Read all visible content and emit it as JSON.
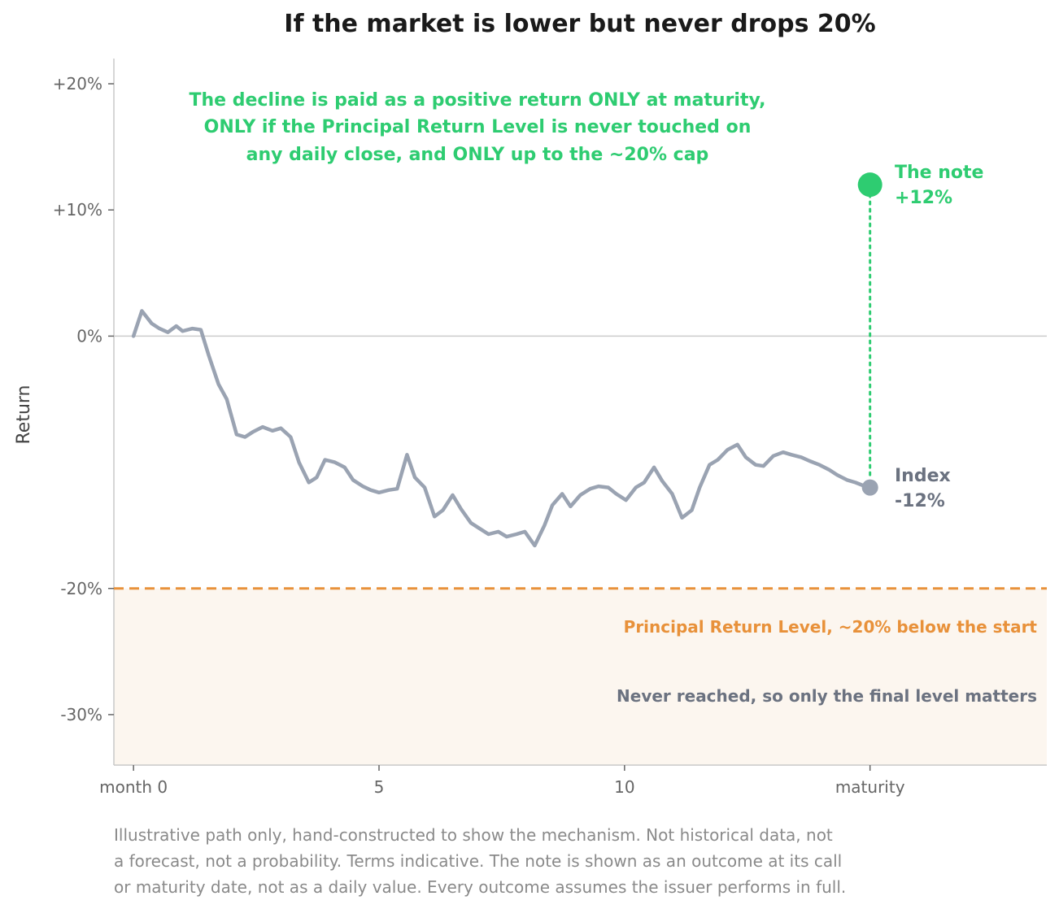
{
  "chart_data": {
    "type": "line",
    "title": "If the market is lower but never drops 20%",
    "ylabel": "Return",
    "xlabel": "",
    "xlim": [
      -0.4,
      18.6
    ],
    "ylim": [
      -34,
      22
    ],
    "y_ticks": [
      {
        "value": 20,
        "label": "+20%"
      },
      {
        "value": 10,
        "label": "+10%"
      },
      {
        "value": 0,
        "label": "0%"
      },
      {
        "value": -20,
        "label": "-20%"
      },
      {
        "value": -30,
        "label": "-30%"
      }
    ],
    "x_ticks": [
      {
        "value": 0,
        "label": "month 0"
      },
      {
        "value": 5,
        "label": "5"
      },
      {
        "value": 10,
        "label": "10"
      },
      {
        "value": 15,
        "label": "maturity"
      }
    ],
    "grid": false,
    "series": [
      {
        "name": "Index",
        "color": "#9aa3b2",
        "x": [
          0,
          0.17,
          0.37,
          0.53,
          0.7,
          0.87,
          1.0,
          1.2,
          1.37,
          1.53,
          1.73,
          1.9,
          2.1,
          2.27,
          2.43,
          2.63,
          2.83,
          3.0,
          3.2,
          3.37,
          3.57,
          3.73,
          3.9,
          4.1,
          4.3,
          4.47,
          4.67,
          4.83,
          5.0,
          5.2,
          5.37,
          5.57,
          5.73,
          5.93,
          6.13,
          6.3,
          6.5,
          6.67,
          6.87,
          7.03,
          7.23,
          7.43,
          7.6,
          7.8,
          7.97,
          8.17,
          8.37,
          8.53,
          8.73,
          8.9,
          9.1,
          9.3,
          9.47,
          9.67,
          9.83,
          10.03,
          10.23,
          10.4,
          10.6,
          10.77,
          10.97,
          11.17,
          11.37,
          11.53,
          11.73,
          11.9,
          12.1,
          12.3,
          12.47,
          12.67,
          12.83,
          13.03,
          13.23,
          13.4,
          13.6,
          13.77,
          13.97,
          14.17,
          14.33,
          14.53,
          14.7,
          14.9,
          15.0
        ],
        "values": [
          0,
          2.0,
          1.0,
          0.6,
          0.3,
          0.8,
          0.4,
          0.6,
          0.5,
          -1.5,
          -3.8,
          -5.0,
          -7.8,
          -8.0,
          -7.6,
          -7.2,
          -7.5,
          -7.3,
          -8.0,
          -10.0,
          -11.6,
          -11.2,
          -9.8,
          -10.0,
          -10.4,
          -11.4,
          -11.9,
          -12.2,
          -12.4,
          -12.2,
          -12.1,
          -9.4,
          -11.2,
          -12.0,
          -14.3,
          -13.8,
          -12.6,
          -13.7,
          -14.8,
          -15.2,
          -15.7,
          -15.5,
          -15.9,
          -15.7,
          -15.5,
          -16.6,
          -15.0,
          -13.4,
          -12.5,
          -13.5,
          -12.6,
          -12.1,
          -11.9,
          -12.0,
          -12.5,
          -13.0,
          -12.0,
          -11.6,
          -10.4,
          -11.5,
          -12.5,
          -14.4,
          -13.8,
          -12.0,
          -10.2,
          -9.8,
          -9.0,
          -8.6,
          -9.6,
          -10.2,
          -10.3,
          -9.5,
          -9.2,
          -9.4,
          -9.6,
          -9.9,
          -10.2,
          -10.6,
          -11.0,
          -11.4,
          -11.6,
          -11.9,
          -12.0
        ]
      }
    ],
    "annotations": {
      "note_label": "The note",
      "note_value": "+12%",
      "note_x": 15,
      "note_y": 12,
      "index_label": "Index",
      "index_value": "-12%",
      "index_x": 15,
      "index_y": -12,
      "prl_value": -20,
      "prl_label": "Principal Return Level, ~20% below the start",
      "prl_sub": "Never reached, so only the final level matters",
      "top_lines": [
        "The decline is paid as a positive return ONLY at maturity,",
        "ONLY if the Principal Return Level is never touched on",
        "any daily close, and ONLY up to the ~20% cap"
      ]
    },
    "colors": {
      "index": "#9aa3b2",
      "note": "#2ecc71",
      "prl": "#e8913a",
      "shade": "#fcf6ef",
      "zero_line": "#cccccc",
      "axis": "#c8c8c8"
    }
  },
  "footer": [
    "Illustrative path only, hand-constructed to show the mechanism. Not historical data, not",
    "a forecast, not a probability. Terms indicative. The note is shown as an outcome at its call",
    "or maturity date, not as a daily value. Every outcome assumes the issuer performs in full."
  ]
}
